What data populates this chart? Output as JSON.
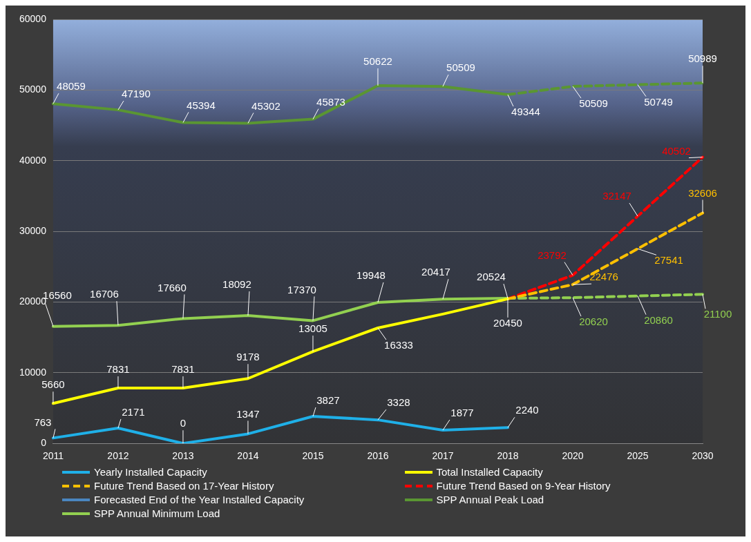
{
  "chart_data": {
    "type": "line",
    "categories": [
      "2011",
      "2012",
      "2013",
      "2014",
      "2015",
      "2016",
      "2017",
      "2018",
      "2020",
      "2025",
      "2030"
    ],
    "ylim": [
      0,
      60000
    ],
    "yticks": [
      0,
      10000,
      20000,
      30000,
      40000,
      50000,
      60000
    ],
    "grid": "y",
    "legend": "bottom",
    "marker": "none",
    "series": [
      {
        "name": "Yearly Installed Capacity",
        "color": "#1fb0e8",
        "line_style": "solid",
        "values": [
          763,
          2171,
          0,
          1347,
          3827,
          3328,
          1877,
          2240,
          null,
          null,
          null
        ],
        "value_labels": [
          "763",
          "2171",
          "0",
          "1347",
          "3827",
          "3328",
          "1877",
          "2240",
          null,
          null,
          null
        ]
      },
      {
        "name": "Total Installed Capacity",
        "color": "#ffff00",
        "line_style": "solid",
        "values": [
          5660,
          7831,
          7831,
          9178,
          13005,
          16333,
          18300,
          20450,
          null,
          null,
          null
        ],
        "value_labels": [
          "5660",
          "7831",
          "7831",
          "9178",
          "13005",
          "16333",
          null,
          "20450",
          null,
          null,
          null
        ]
      },
      {
        "name": "Future Trend Based on 17-Year History",
        "color": "#ffc000",
        "line_style": "dashed",
        "values": [
          null,
          null,
          null,
          null,
          null,
          null,
          null,
          20450,
          22476,
          27541,
          32606
        ],
        "value_labels": [
          null,
          null,
          null,
          null,
          null,
          null,
          null,
          null,
          "22476",
          "27541",
          "32606"
        ]
      },
      {
        "name": "Future Trend Based on 9-Year History",
        "color": "#ff0000",
        "line_style": "dashed",
        "values": [
          null,
          null,
          null,
          null,
          null,
          null,
          null,
          20450,
          23792,
          32147,
          40502
        ],
        "value_labels": [
          null,
          null,
          null,
          null,
          null,
          null,
          null,
          null,
          "23792",
          "32147",
          "40502"
        ]
      },
      {
        "name": "Forecasted End of the Year Installed Capacity",
        "color": "#4a86c0",
        "line_style": "solid",
        "values": [
          null,
          null,
          null,
          null,
          null,
          null,
          null,
          null,
          null,
          null,
          null
        ]
      },
      {
        "name": "SPP Annual Peak Load",
        "color": "#5a9632",
        "line_style": "solid",
        "values": [
          48059,
          47190,
          45394,
          45302,
          45873,
          50622,
          50509,
          49344,
          null,
          null,
          null
        ],
        "value_labels": [
          "48059",
          "47190",
          "45394",
          "45302",
          "45873",
          "50622",
          "50509",
          "49344",
          null,
          null,
          null
        ]
      },
      {
        "name": "SPP Annual Minimum Load",
        "color": "#92d050",
        "line_style": "solid",
        "values": [
          16560,
          16706,
          17660,
          18092,
          17370,
          19948,
          20417,
          20524,
          null,
          null,
          null
        ],
        "value_labels": [
          "16560",
          "16706",
          "17660",
          "18092",
          "17370",
          "19948",
          "20417",
          "20524",
          null,
          null,
          null
        ]
      },
      {
        "color": "#5a9632",
        "line_style": "dashed",
        "values": [
          null,
          null,
          null,
          null,
          null,
          null,
          null,
          49344,
          50509,
          50749,
          50989
        ],
        "value_labels": [
          null,
          null,
          null,
          null,
          null,
          null,
          null,
          null,
          "50509",
          "50749",
          "50989"
        ]
      },
      {
        "color": "#92d050",
        "line_style": "dashed",
        "values": [
          null,
          null,
          null,
          null,
          null,
          null,
          null,
          20524,
          20620,
          20860,
          21100
        ],
        "value_labels": [
          null,
          null,
          null,
          null,
          null,
          null,
          null,
          null,
          "20620",
          "20860",
          "21100"
        ]
      }
    ]
  }
}
